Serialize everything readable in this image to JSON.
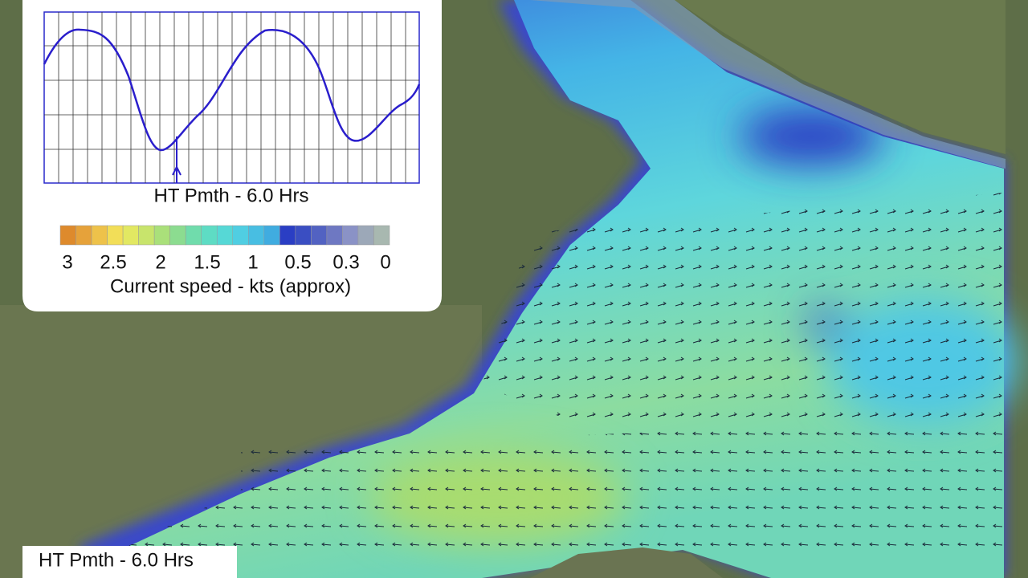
{
  "overlay": {
    "tide_label": "HT Pmth - 6.0 Hrs",
    "legend": {
      "labels": [
        "3",
        "2.5",
        "2",
        "1.5",
        "1",
        "0.5",
        "0.3",
        "0"
      ],
      "colors": [
        "#de8a2c",
        "#e6a23a",
        "#eec24a",
        "#f2de58",
        "#e2e862",
        "#c8e46c",
        "#aae07a",
        "#8cdc90",
        "#70dcac",
        "#5edcc4",
        "#56d8d6",
        "#50cee2",
        "#48bee2",
        "#40ace0",
        "#2a3ec4",
        "#3a4ec2",
        "#5262c2",
        "#6e78c2",
        "#8a92c6",
        "#9ca8b8",
        "#a8b8b0"
      ],
      "caption": "Current speed - kts (approx)"
    }
  },
  "footer": {
    "label": "HT Pmth - 6.0 Hrs"
  }
}
